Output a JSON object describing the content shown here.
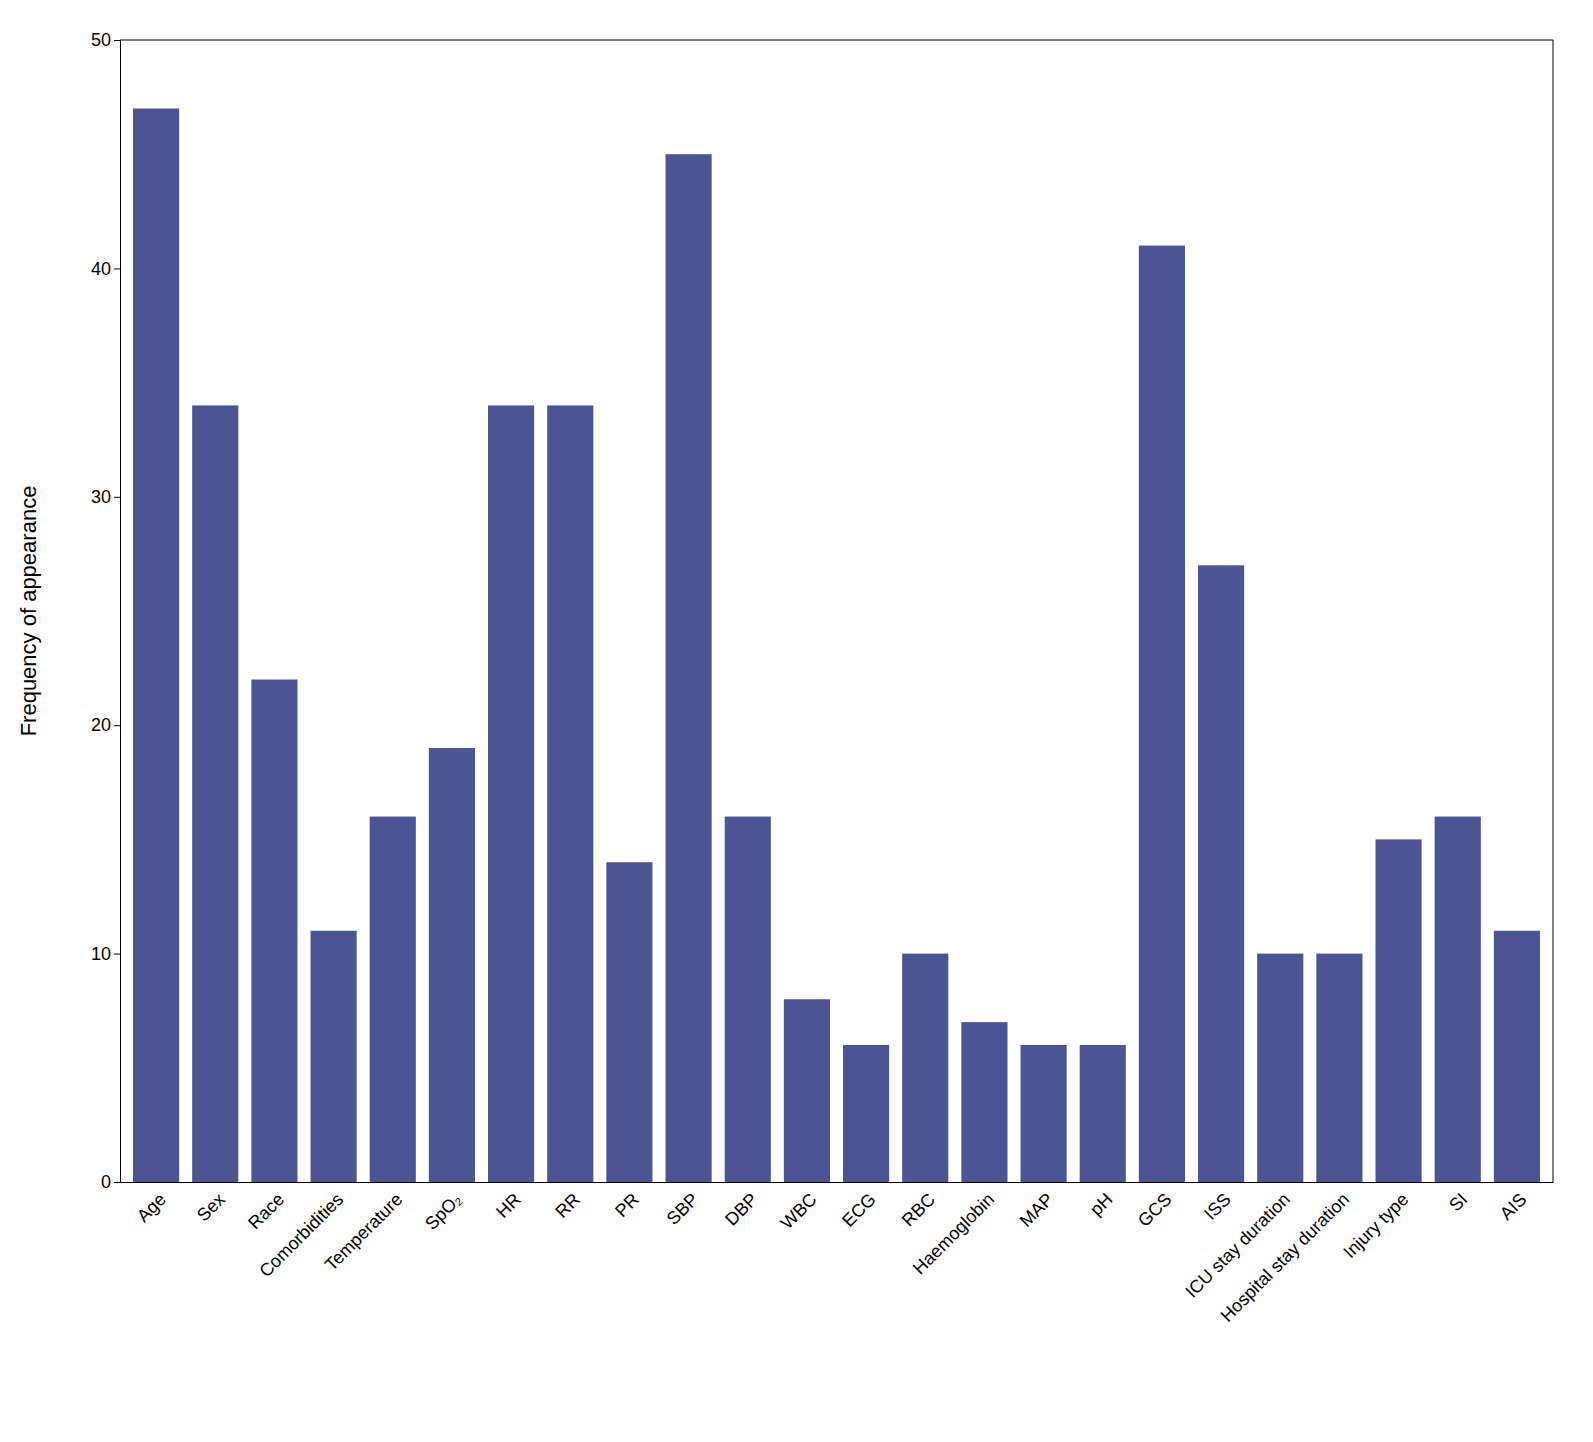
{
  "chart_data": {
    "type": "bar",
    "ylabel": "Frequency of appearance",
    "categories": [
      "Age",
      "Sex",
      "Race",
      "Comorbidities",
      "Temperature",
      "SpO₂",
      "HR",
      "RR",
      "PR",
      "SBP",
      "DBP",
      "WBC",
      "ECG",
      "RBC",
      "Haemoglobin",
      "MAP",
      "pH",
      "GCS",
      "ISS",
      "ICU stay duration",
      "Hospital stay duration",
      "Injury type",
      "SI",
      "AIS"
    ],
    "values": [
      47,
      34,
      22,
      11,
      16,
      19,
      34,
      34,
      14,
      45,
      16,
      8,
      6,
      10,
      7,
      6,
      6,
      41,
      27,
      10,
      10,
      15,
      16,
      11
    ],
    "color": "#4d5494",
    "ylim": [
      0,
      50
    ],
    "yticks": [
      0,
      10,
      20,
      30,
      40,
      50
    ],
    "grid": false
  }
}
